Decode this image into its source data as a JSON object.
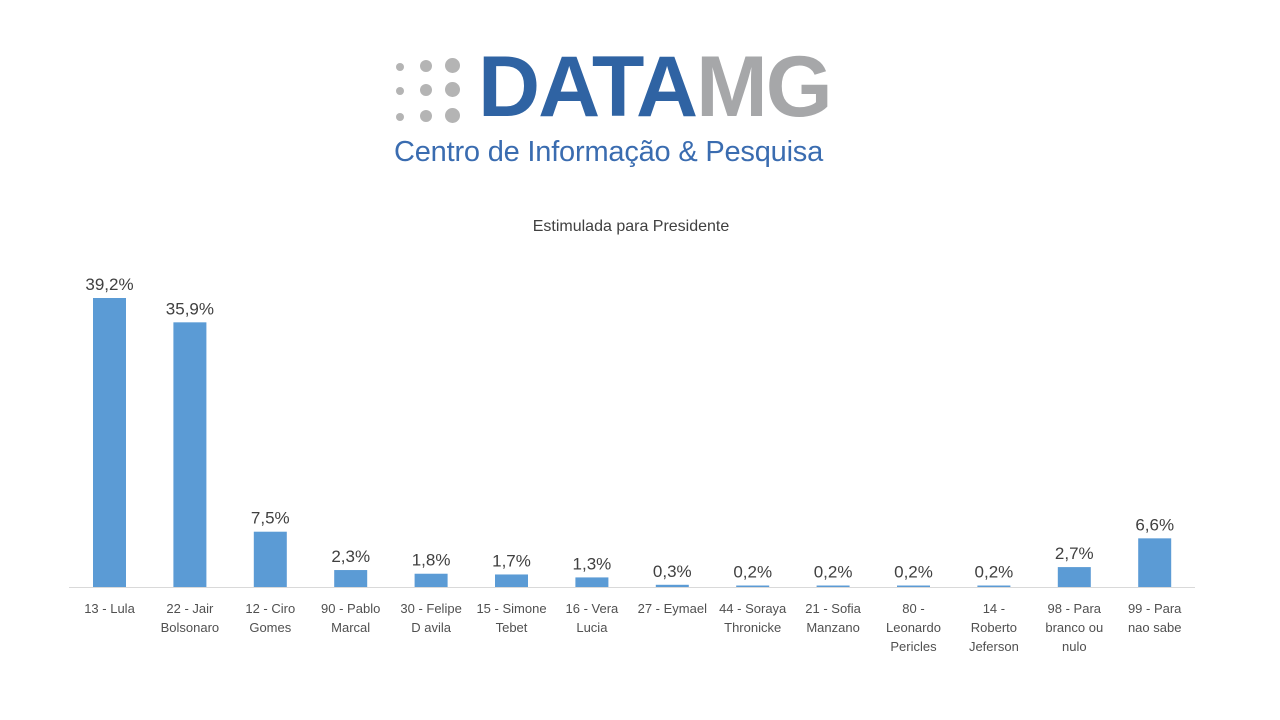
{
  "logo": {
    "brand_part1": "DATA",
    "brand_part2": "MG",
    "subtitle": "Centro de Informação & Pesquisa"
  },
  "chart_data": {
    "type": "bar",
    "title": "Estimulada para Presidente",
    "categories": [
      "13 - Lula",
      "22 - Jair\nBolsonaro",
      "12 - Ciro\nGomes",
      "90 - Pablo\nMarcal",
      "30 - Felipe\nD avila",
      "15 - Simone\nTebet",
      "16 - Vera\nLucia",
      "27 - Eymael",
      "44 - Soraya\nThronicke",
      "21 - Sofia\nManzano",
      "80 -\nLeonardo\nPericles",
      "14 -\nRoberto\nJeferson",
      "98 - Para\nbranco ou\nnulo",
      "99 - Para\nnao sabe"
    ],
    "values": [
      39.2,
      35.9,
      7.5,
      2.3,
      1.8,
      1.7,
      1.3,
      0.3,
      0.2,
      0.2,
      0.2,
      0.2,
      2.7,
      6.6
    ],
    "data_labels": [
      "39,2%",
      "35,9%",
      "7,5%",
      "2,3%",
      "1,8%",
      "1,7%",
      "1,3%",
      "0,3%",
      "0,2%",
      "0,2%",
      "0,2%",
      "0,2%",
      "2,7%",
      "6,6%"
    ],
    "xlabel": "",
    "ylabel": "",
    "ylim": [
      0,
      40
    ],
    "grid": false,
    "legend": "none",
    "bar_color": "#5b9bd5"
  }
}
